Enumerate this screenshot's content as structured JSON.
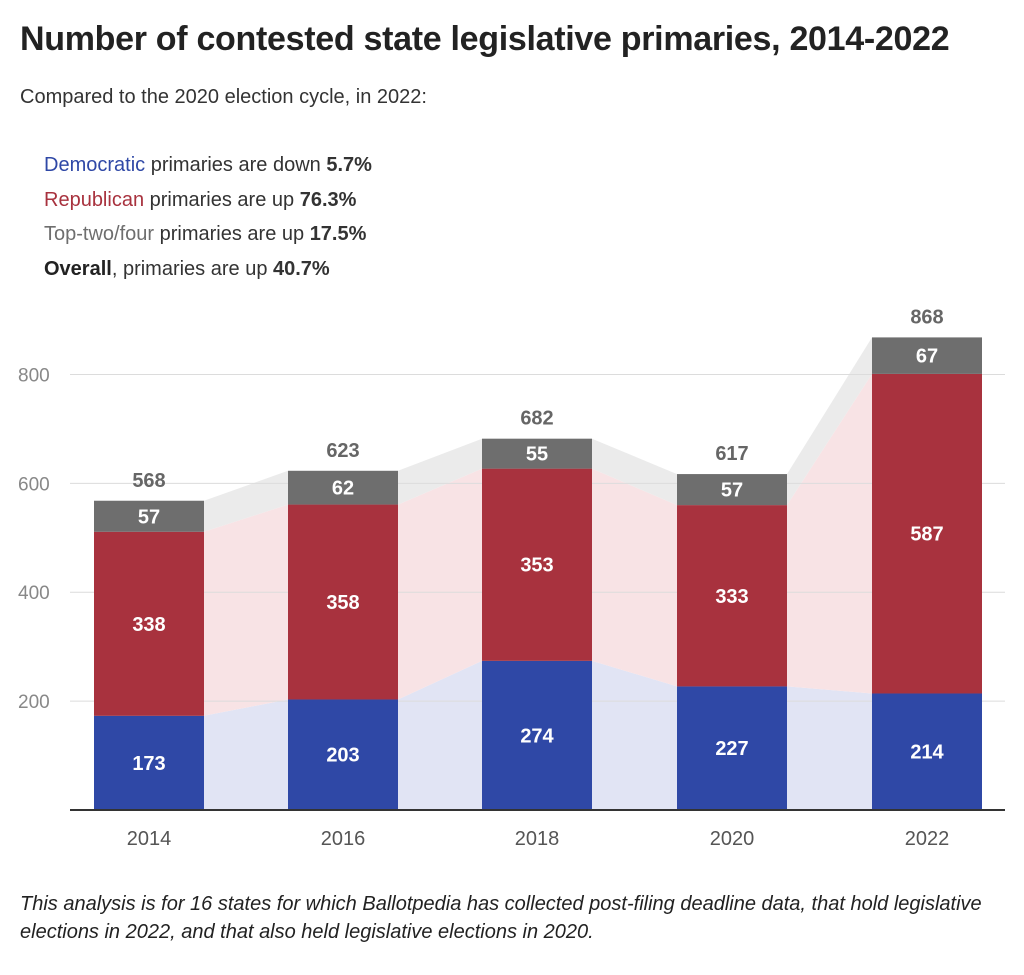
{
  "title": "Number of contested state legislative primaries, 2014-2022",
  "subtitle": "Compared to the 2020 election cycle, in 2022:",
  "summary": [
    {
      "party": "Democratic",
      "text": " primaries are down ",
      "value": "5.7%",
      "color": "#2f48a6"
    },
    {
      "party": "Republican",
      "text": " primaries are up ",
      "value": "76.3%",
      "color": "#a8323e"
    },
    {
      "party": "Top-two/four",
      "text": " primaries are up ",
      "value": "17.5%",
      "color": "#6e6e6e"
    },
    {
      "party": "Overall",
      "text": ", primaries are up ",
      "value": "40.7%",
      "color": "#222222"
    }
  ],
  "note": "This analysis is for 16 states for which Ballotpedia has collected post-filing deadline data, that hold legislative elections in 2022, and that also held legislative elections in 2020.",
  "chart_data": {
    "type": "bar",
    "stacked": true,
    "categories": [
      "2014",
      "2016",
      "2018",
      "2020",
      "2022"
    ],
    "series": [
      {
        "name": "Democratic",
        "color": "#2f48a6",
        "area_color": "#e1e4f4",
        "values": [
          173,
          203,
          274,
          227,
          214
        ]
      },
      {
        "name": "Republican",
        "color": "#a8323e",
        "area_color": "#f8e3e5",
        "values": [
          338,
          358,
          353,
          333,
          587
        ]
      },
      {
        "name": "Top-two/four",
        "color": "#6e6e6e",
        "area_color": "#ebebeb",
        "values": [
          57,
          62,
          55,
          57,
          67
        ]
      }
    ],
    "totals": [
      568,
      623,
      682,
      617,
      868
    ],
    "yticks": [
      200,
      400,
      600,
      800
    ],
    "ylim": [
      0,
      900
    ],
    "grid": true
  }
}
